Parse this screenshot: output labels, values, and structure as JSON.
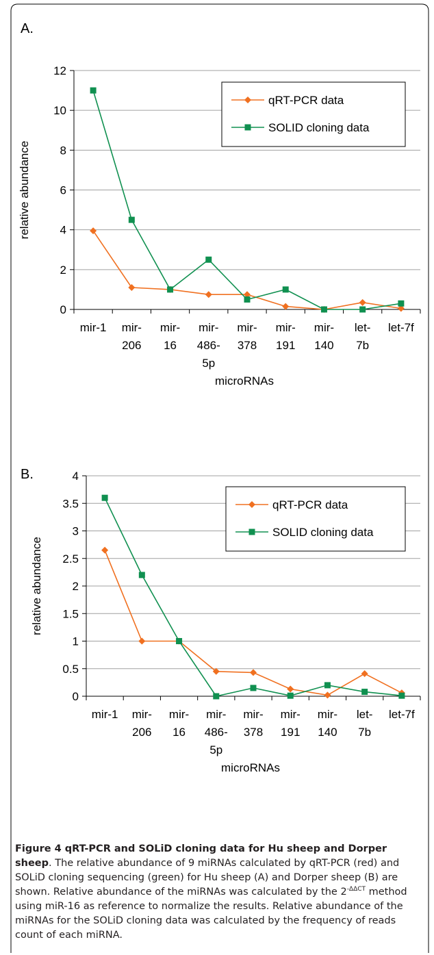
{
  "figure": {
    "caption_title": "Figure 4 qRT-PCR and SOLiD cloning data for Hu sheep and Dorper sheep",
    "caption_part1": ". The relative abundance of 9 miRNAs calculated by qRT-PCR (red) and SOLiD cloning sequencing (green) for Hu sheep (A) and Dorper sheep (B) are shown. Relative abundance of the miRNAs was calculated by the 2",
    "caption_sup": "-ΔΔCT",
    "caption_part2": " method using miR-16 as reference to normalize the results. Relative abundance of the miRNAs for the SOLiD cloning data was calculated by the frequency of reads count of each miRNA."
  },
  "colors": {
    "qrt": "#f07020",
    "solid": "#109050",
    "grid": "#a0a0a0",
    "axis": "#000000"
  },
  "chart_data": [
    {
      "type": "line",
      "panel_label": "A.",
      "title": "",
      "xlabel": "microRNAs",
      "ylabel": "relative abundance",
      "categories": [
        [
          "mir-1"
        ],
        [
          "mir-",
          "206"
        ],
        [
          "mir-",
          "16"
        ],
        [
          "mir-",
          "486-",
          "5p"
        ],
        [
          "mir-",
          "378"
        ],
        [
          "mir-",
          "191"
        ],
        [
          "mir-",
          "140"
        ],
        [
          "let-",
          "7b"
        ],
        [
          "let-7f"
        ]
      ],
      "ylim": [
        0,
        12
      ],
      "yticks": [
        0,
        2,
        4,
        6,
        8,
        10,
        12
      ],
      "ytick_labels": [
        "0",
        "2",
        "4",
        "6",
        "8",
        "10",
        "12"
      ],
      "grid": true,
      "legend_position": "top-right",
      "series": [
        {
          "name": "qRT-PCR data",
          "marker": "diamond",
          "values": [
            3.95,
            1.1,
            1.0,
            0.75,
            0.75,
            0.15,
            0.0,
            0.35,
            0.05
          ]
        },
        {
          "name": "SOLID cloning data",
          "marker": "square",
          "values": [
            11.0,
            4.5,
            1.0,
            2.5,
            0.5,
            1.0,
            0.0,
            0.0,
            0.3
          ]
        }
      ]
    },
    {
      "type": "line",
      "panel_label": "B.",
      "title": "",
      "xlabel": "microRNAs",
      "ylabel": "relative abundance",
      "categories": [
        [
          "mir-1"
        ],
        [
          "mir-",
          "206"
        ],
        [
          "mir-",
          "16"
        ],
        [
          "mir-",
          "486-",
          "5p"
        ],
        [
          "mir-",
          "378"
        ],
        [
          "mir-",
          "191"
        ],
        [
          "mir-",
          "140"
        ],
        [
          "let-",
          "7b"
        ],
        [
          "let-7f"
        ]
      ],
      "ylim": [
        0,
        4
      ],
      "yticks": [
        0,
        0.5,
        1,
        1.5,
        2,
        2.5,
        3,
        3.5,
        4
      ],
      "ytick_labels": [
        "0",
        "0.5",
        "1",
        "1.5",
        "2",
        "2.5",
        "3",
        "3.5",
        "4"
      ],
      "grid": true,
      "legend_position": "top-right",
      "series": [
        {
          "name": "qRT-PCR data",
          "marker": "diamond",
          "values": [
            2.65,
            1.0,
            1.0,
            0.45,
            0.43,
            0.13,
            0.02,
            0.41,
            0.06
          ]
        },
        {
          "name": "SOLID cloning data",
          "marker": "square",
          "values": [
            3.6,
            2.2,
            1.0,
            0.0,
            0.15,
            0.01,
            0.2,
            0.08,
            0.01
          ]
        }
      ]
    }
  ]
}
